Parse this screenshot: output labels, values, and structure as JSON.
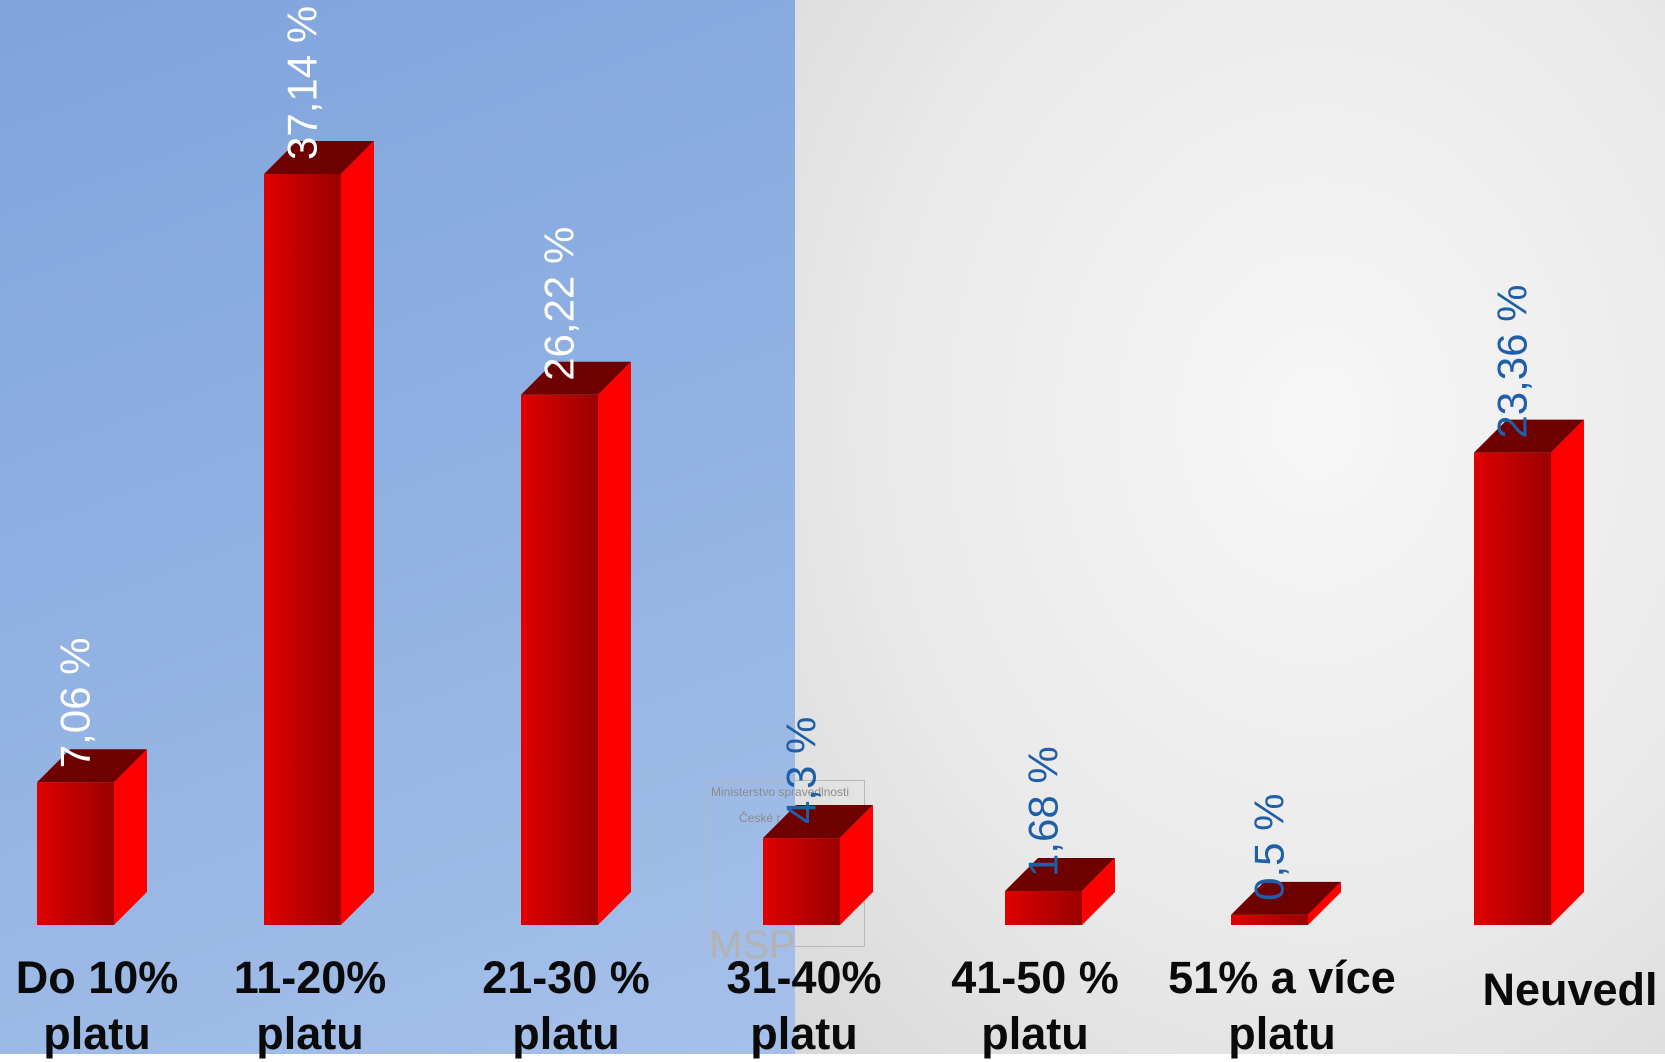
{
  "chart_data": {
    "type": "bar",
    "categories": [
      "Do 10%\nplatu",
      "11-20%\nplatu",
      "21-30 %\nplatu",
      "31-40%\nplatu",
      "41-50 %\nplatu",
      "51% a více\nplatu",
      "Neuvedl"
    ],
    "values": [
      7.06,
      37.14,
      26.22,
      4.3,
      1.68,
      0.5,
      23.36
    ],
    "data_labels": [
      "7,06 %",
      "37,14 %",
      "26,22 %",
      "4,3 %",
      "1,68 %",
      "0,5 %",
      "23,36 %"
    ],
    "label_colors": [
      "#ffffff",
      "#ffffff",
      "#ffffff",
      "#1f5fa8",
      "#1f5fa8",
      "#1f5fa8",
      "#1f5fa8"
    ],
    "bar_color_front": "#cc0000",
    "bar_color_top": "#6e0000",
    "bar_color_side": "#ff0000",
    "ylim": [
      0,
      40
    ]
  },
  "watermark": {
    "line1": "Ministerstvo spravedlnosti",
    "line2": "České r",
    "line3": "MSP"
  }
}
